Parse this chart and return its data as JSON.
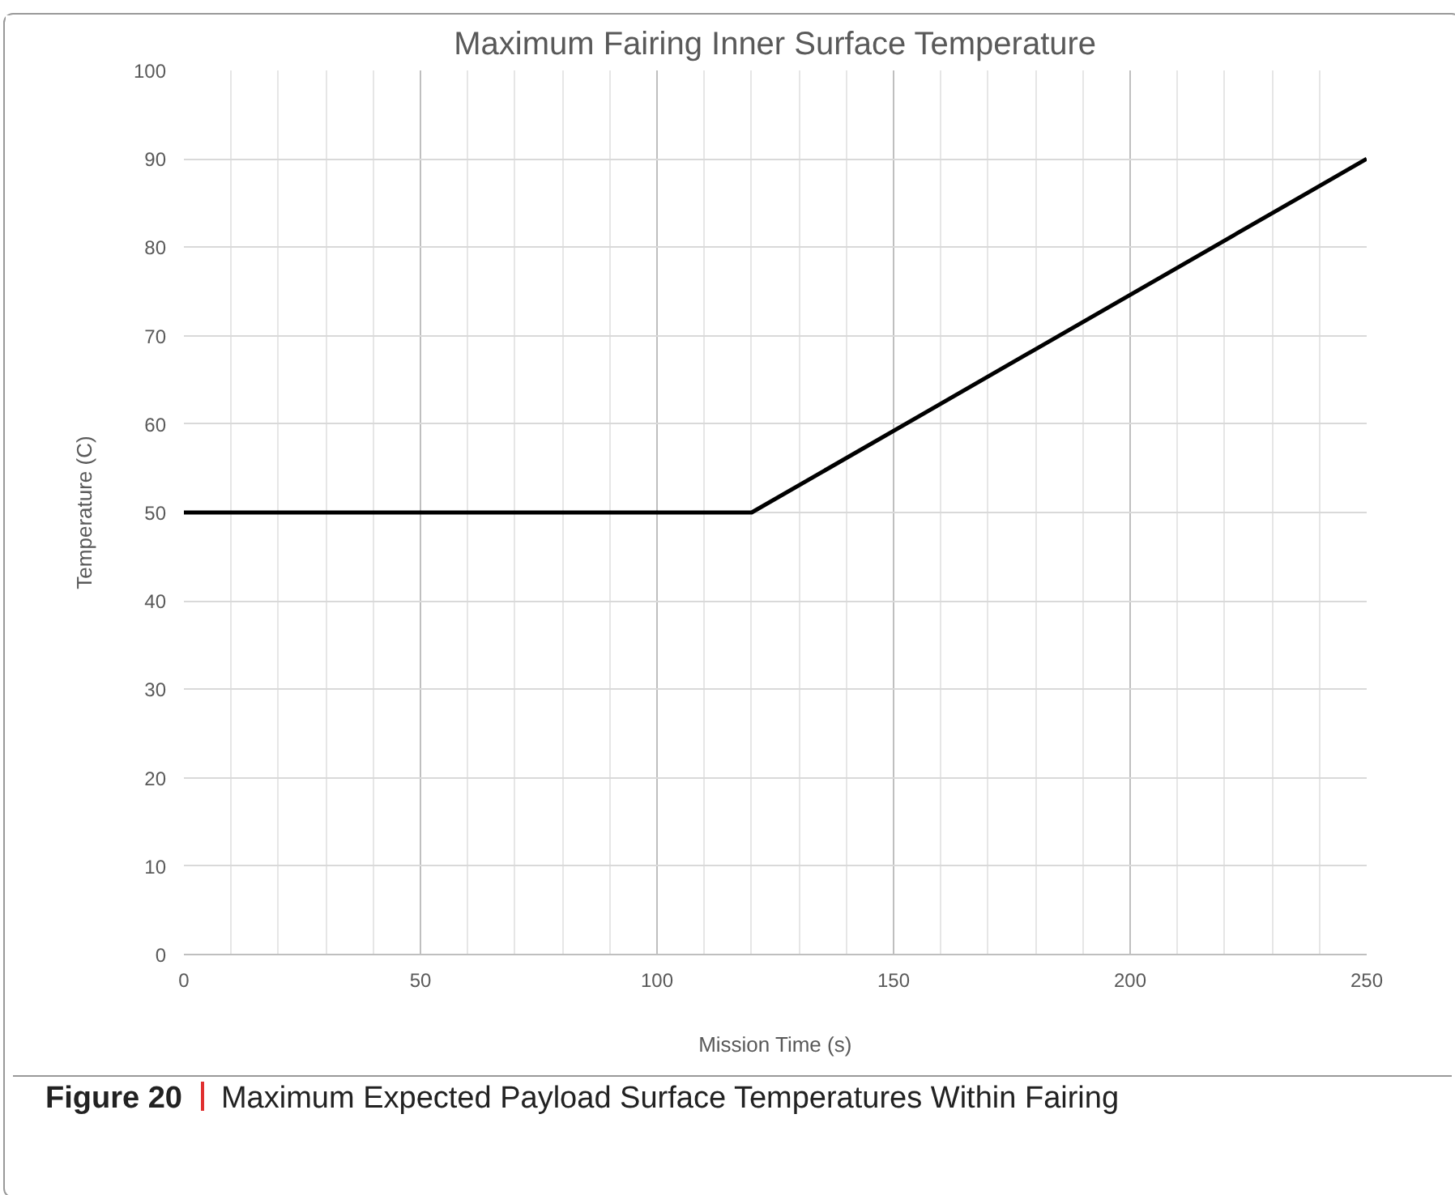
{
  "chart_data": {
    "type": "line",
    "title": "Maximum Fairing Inner Surface Temperature",
    "xlabel": "Mission Time (s)",
    "ylabel": "Temperature (C)",
    "x": [
      0,
      120,
      250
    ],
    "series": [
      {
        "color": "#000000",
        "values": [
          50,
          50,
          90
        ]
      }
    ],
    "xlim": [
      0,
      250
    ],
    "xticks": [
      0,
      50,
      100,
      150,
      200,
      250
    ],
    "ylim": [
      0,
      100
    ],
    "yticks": [
      0,
      10,
      20,
      30,
      40,
      50,
      60,
      70,
      80,
      90,
      100
    ],
    "grid": true,
    "marker": "none",
    "line_style": "solid",
    "annotations": [
      "Figure 20",
      "Maximum Expected Payload Surface Temperatures Within Fairing"
    ]
  }
}
